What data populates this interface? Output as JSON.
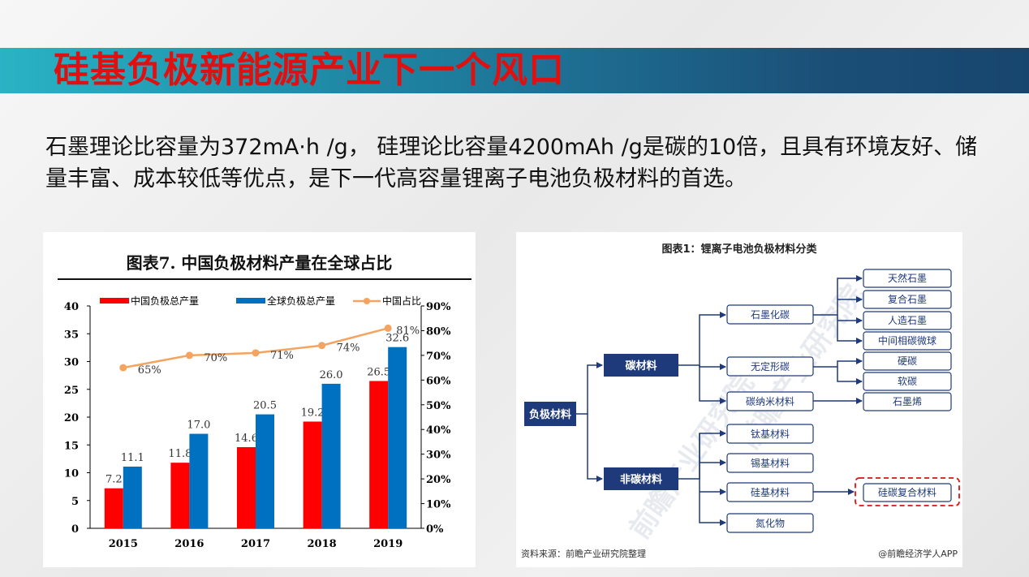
{
  "slide": {
    "title": "硅基负极新能源产业下一个风口",
    "intro": "石墨理论比容量为372mA·h /g， 硅理论比容量4200mAh /g是碳的10倍，且具有环境友好、储量丰富、成本较低等优点，是下一代高容量锂离子电池负极材料的首选。"
  },
  "chart_data": {
    "type": "bar",
    "title": "图表7. 中国负极材料产量在全球占比",
    "categories": [
      "2015",
      "2016",
      "2017",
      "2018",
      "2019"
    ],
    "series": [
      {
        "name": "中国负极总产量",
        "type": "bar",
        "color": "#ff0000",
        "values": [
          7.2,
          11.8,
          14.6,
          19.2,
          26.5
        ],
        "labels": [
          "7.2",
          "11.8",
          "14.6",
          "19.2",
          "26.5"
        ]
      },
      {
        "name": "全球负极总产量",
        "type": "bar",
        "color": "#0070c0",
        "values": [
          11.1,
          17.0,
          20.5,
          26.0,
          32.6
        ],
        "labels": [
          "11.1",
          "17.0",
          "20.5",
          "26.0",
          "32.6"
        ]
      },
      {
        "name": "中国占比",
        "type": "line",
        "axis": "right",
        "color": "#f4a460",
        "values": [
          65,
          70,
          71,
          74,
          81
        ],
        "labels": [
          "65%",
          "70%",
          "71%",
          "74%",
          "81%"
        ]
      }
    ],
    "ylim": [
      0,
      40
    ],
    "y_ticks": [
      "0",
      "5",
      "10",
      "15",
      "20",
      "25",
      "30",
      "35",
      "40"
    ],
    "y2lim": [
      0,
      90
    ],
    "y2_ticks": [
      "0%",
      "10%",
      "20%",
      "30%",
      "40%",
      "50%",
      "60%",
      "70%",
      "80%",
      "90%"
    ],
    "grid": false,
    "legend": "top"
  },
  "diagram": {
    "title": "图表1：锂离子电池负极材料分类",
    "root": "负极材料",
    "carbon": "碳材料",
    "noncarbon": "非碳材料",
    "graphitized": "石墨化碳",
    "amorphous": "无定形碳",
    "nano": "碳纳米材料",
    "natural": "天然石墨",
    "composite": "复合石墨",
    "artificial": "人造石墨",
    "mcmb": "中间相碳微球",
    "hard": "硬碳",
    "soft": "软碳",
    "graphene": "石墨烯",
    "titanium": "钛基材料",
    "tin": "锡基材料",
    "silicon": "硅基材料",
    "nitride": "氮化物",
    "sic": "硅碳复合材料",
    "source": "资料来源：前瞻产业研究院整理",
    "credit": "@前瞻经济学人APP",
    "watermark": "前瞻产业研究院"
  }
}
